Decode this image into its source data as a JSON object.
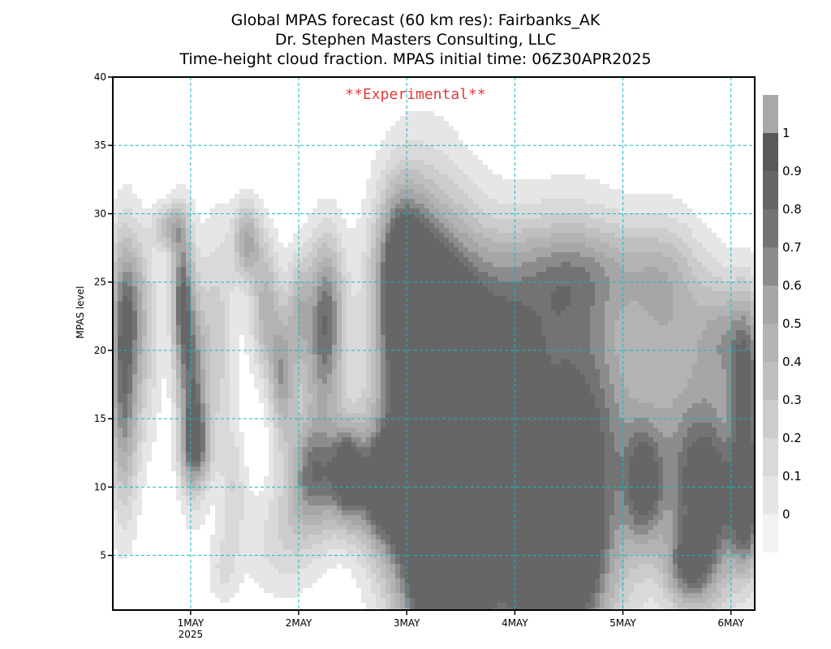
{
  "title": {
    "line1": "Global MPAS forecast (60 km res): Fairbanks_AK",
    "line2": "Dr. Stephen Masters Consulting, LLC",
    "line3": "Time-height cloud fraction.   MPAS initial time: 06Z30APR2025"
  },
  "annotation": {
    "text": "**Experimental**",
    "color": "#e03c3c"
  },
  "colors": {
    "grid": "#17b8c4",
    "shades": [
      "#f2f2f2",
      "#e6e6e6",
      "#d9d9d9",
      "#cccccc",
      "#bfbfbf",
      "#b3b3b3",
      "#a6a6a6",
      "#8c8c8c",
      "#737373",
      "#666666",
      "#595959"
    ],
    "colorbar_top": "#a8a8a8"
  },
  "chart_data": {
    "type": "heatmap",
    "ylabel": "MPAS level",
    "xlabel": "",
    "ylim": [
      1,
      40
    ],
    "xlim_days": [
      -0.72,
      5.22
    ],
    "grid": true,
    "y_ticks": [
      {
        "value": 5,
        "label": "5"
      },
      {
        "value": 10,
        "label": "10"
      },
      {
        "value": 15,
        "label": "15"
      },
      {
        "value": 20,
        "label": "20"
      },
      {
        "value": 25,
        "label": "25"
      },
      {
        "value": 30,
        "label": "30"
      },
      {
        "value": 35,
        "label": "35"
      },
      {
        "value": 40,
        "label": "40"
      }
    ],
    "x_ticks": [
      {
        "value": 0,
        "label": "1MAY",
        "sublabel": "2025"
      },
      {
        "value": 1,
        "label": "2MAY",
        "sublabel": ""
      },
      {
        "value": 2,
        "label": "3MAY",
        "sublabel": ""
      },
      {
        "value": 3,
        "label": "4MAY",
        "sublabel": ""
      },
      {
        "value": 4,
        "label": "5MAY",
        "sublabel": ""
      },
      {
        "value": 5,
        "label": "6MAY",
        "sublabel": ""
      }
    ],
    "colorbar": {
      "levels": [
        0,
        0.1,
        0.2,
        0.3,
        0.4,
        0.5,
        0.6,
        0.7,
        0.8,
        0.9,
        1
      ],
      "labels": [
        "0",
        "0.1",
        "0.2",
        "0.3",
        "0.4",
        "0.5",
        "0.6",
        "0.7",
        "0.8",
        "0.9",
        "1"
      ]
    },
    "cloud_blobs": [
      {
        "t": -0.62,
        "z": 18,
        "st": 0.1,
        "sz": 6.5,
        "v": 0.85
      },
      {
        "t": -0.55,
        "z": 24,
        "st": 0.12,
        "sz": 3.5,
        "v": 0.35
      },
      {
        "t": -0.4,
        "z": 20,
        "st": 0.1,
        "sz": 5,
        "v": 0.25
      },
      {
        "t": -0.2,
        "z": 29,
        "st": 0.1,
        "sz": 1.2,
        "v": 0.5
      },
      {
        "t": -0.08,
        "z": 24,
        "st": 0.07,
        "sz": 4,
        "v": 0.8
      },
      {
        "t": 0.02,
        "z": 17,
        "st": 0.09,
        "sz": 5,
        "v": 0.75
      },
      {
        "t": 0.05,
        "z": 13,
        "st": 0.1,
        "sz": 2,
        "v": 0.55
      },
      {
        "t": 0.25,
        "z": 21,
        "st": 0.12,
        "sz": 6,
        "v": 0.35
      },
      {
        "t": 0.4,
        "z": 10,
        "st": 0.08,
        "sz": 3,
        "v": 0.25
      },
      {
        "t": 0.3,
        "z": 4,
        "st": 0.1,
        "sz": 2,
        "v": 0.2
      },
      {
        "t": 0.52,
        "z": 28,
        "st": 0.09,
        "sz": 2,
        "v": 0.6
      },
      {
        "t": 0.7,
        "z": 23,
        "st": 0.1,
        "sz": 3.5,
        "v": 0.55
      },
      {
        "t": 0.85,
        "z": 18,
        "st": 0.08,
        "sz": 3,
        "v": 0.6
      },
      {
        "t": 1.0,
        "z": 23,
        "st": 0.08,
        "sz": 3,
        "v": 0.45
      },
      {
        "t": 1.25,
        "z": 23,
        "st": 0.12,
        "sz": 4,
        "v": 0.8
      },
      {
        "t": 1.2,
        "z": 18,
        "st": 0.15,
        "sz": 3,
        "v": 0.3
      },
      {
        "t": 1.15,
        "z": 11,
        "st": 0.18,
        "sz": 3,
        "v": 0.85
      },
      {
        "t": 1.45,
        "z": 11,
        "st": 0.1,
        "sz": 2.5,
        "v": 0.75
      },
      {
        "t": 0.85,
        "z": 6,
        "st": 0.25,
        "sz": 3,
        "v": 0.25
      },
      {
        "t": 1.75,
        "z": 10,
        "st": 0.18,
        "sz": 3,
        "v": 0.85
      },
      {
        "t": 2.15,
        "z": 20,
        "st": 0.3,
        "sz": 8,
        "v": 1.0
      },
      {
        "t": 2.3,
        "z": 10,
        "st": 0.3,
        "sz": 8,
        "v": 1.0
      },
      {
        "t": 2.5,
        "z": 4,
        "st": 0.35,
        "sz": 5,
        "v": 1.0
      },
      {
        "t": 1.95,
        "z": 26,
        "st": 0.15,
        "sz": 4,
        "v": 0.75
      },
      {
        "t": 2.55,
        "z": 23,
        "st": 0.4,
        "sz": 5,
        "v": 0.4
      },
      {
        "t": 2.9,
        "z": 17,
        "st": 0.25,
        "sz": 4,
        "v": 0.7
      },
      {
        "t": 3.2,
        "z": 24,
        "st": 0.45,
        "sz": 4,
        "v": 0.35
      },
      {
        "t": 3.6,
        "z": 12,
        "st": 0.35,
        "sz": 9,
        "v": 1.0
      },
      {
        "t": 3.4,
        "z": 4,
        "st": 0.25,
        "sz": 4,
        "v": 0.9
      },
      {
        "t": 3.75,
        "z": 26,
        "st": 0.55,
        "sz": 2.5,
        "v": 0.3
      },
      {
        "t": 4.2,
        "z": 10,
        "st": 0.12,
        "sz": 3,
        "v": 0.6
      },
      {
        "t": 4.4,
        "z": 24,
        "st": 0.25,
        "sz": 4,
        "v": 0.4
      },
      {
        "t": 4.5,
        "z": 13,
        "st": 0.35,
        "sz": 6,
        "v": 0.45
      },
      {
        "t": 4.8,
        "z": 9,
        "st": 0.22,
        "sz": 5,
        "v": 0.85
      },
      {
        "t": 4.6,
        "z": 4,
        "st": 0.15,
        "sz": 2,
        "v": 0.55
      },
      {
        "t": 5.15,
        "z": 16,
        "st": 0.1,
        "sz": 5,
        "v": 0.8
      },
      {
        "t": 5.15,
        "z": 8,
        "st": 0.1,
        "sz": 3,
        "v": 0.7
      },
      {
        "t": 4.95,
        "z": 21,
        "st": 0.2,
        "sz": 3,
        "v": 0.5
      },
      {
        "t": 3.1,
        "z": 6,
        "st": 0.2,
        "sz": 5,
        "v": 0.5
      }
    ]
  }
}
